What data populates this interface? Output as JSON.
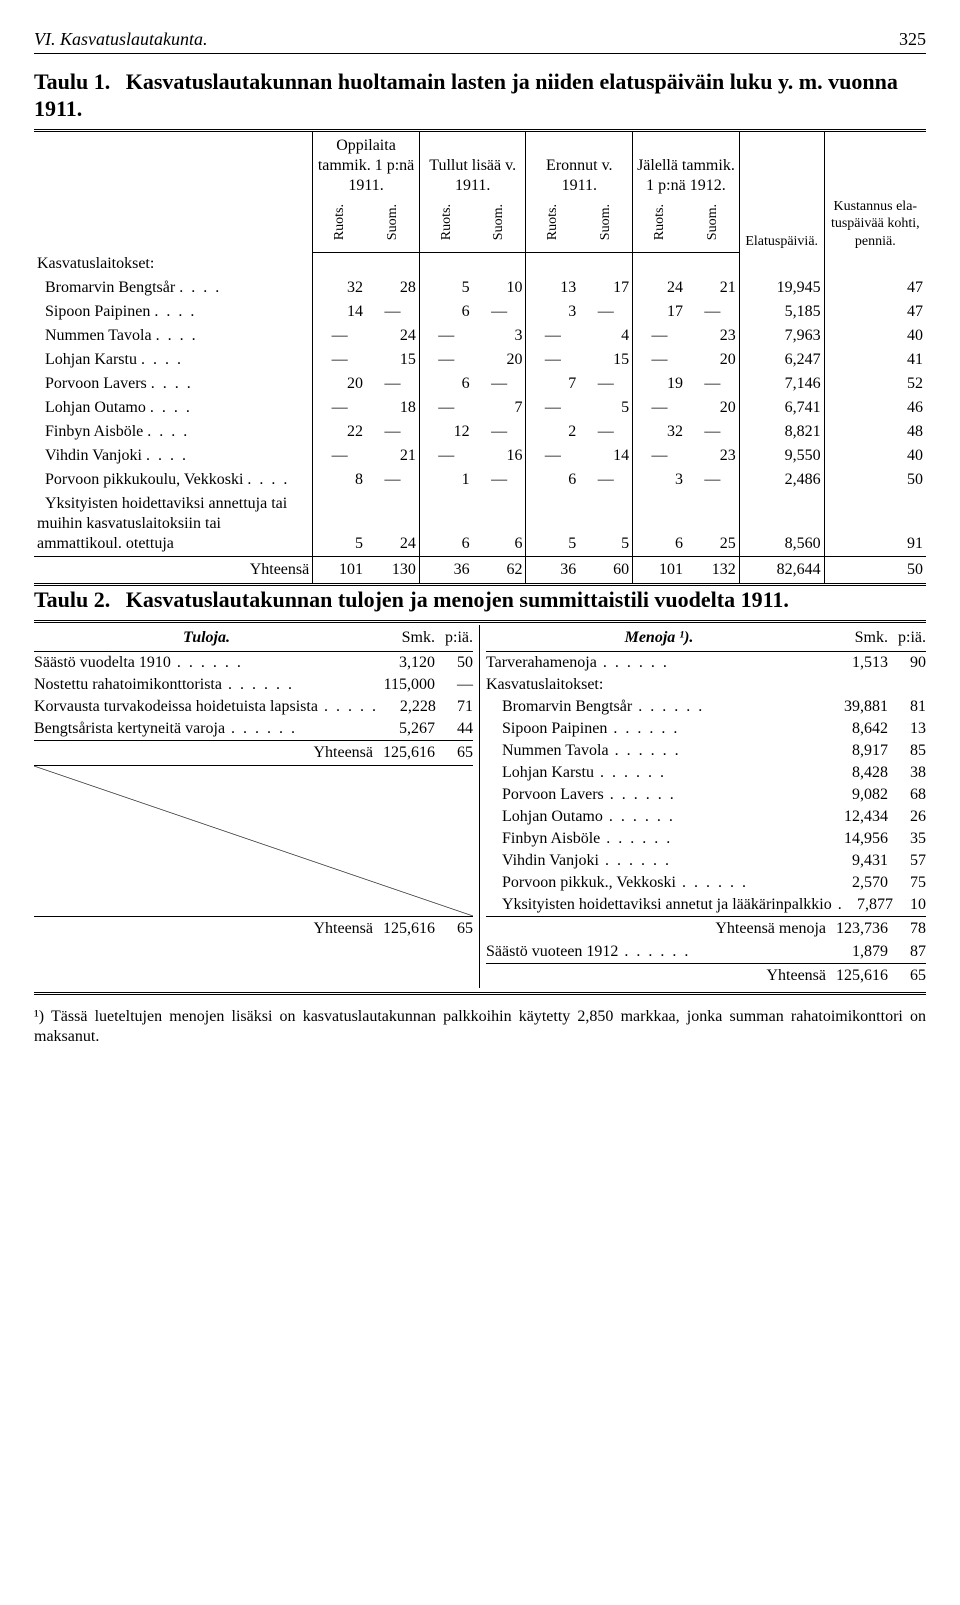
{
  "running_head": {
    "title": "VI. Kasvatuslautakunta.",
    "page": "325"
  },
  "table1": {
    "title_lead": "Taulu 1.",
    "title_rest": "Kasvatuslautakunnan huoltamain lasten ja niiden elatuspäiväin luku y. m. vuonna 1911.",
    "head": {
      "groups": [
        "Oppilaita tammik. 1 p:nä 1911.",
        "Tullut lisää v. 1911.",
        "Eronnut v. 1911.",
        "Jälellä tammik. 1 p:nä 1912."
      ],
      "sub": "Ruots.  Suom.",
      "elatus": "Elatus­päi­viä.",
      "kust": "Kustan­nus ela­tuspäi­vää koh­ti, pen­niä.",
      "ruots": "Ruots.",
      "suom": "Suom."
    },
    "section_label": "Kasvatuslaitokset:",
    "rows": [
      {
        "label": "Bromarvin Bengtsår",
        "c": [
          "32",
          "28",
          "5",
          "10",
          "13",
          "17",
          "24",
          "21",
          "19,945",
          "47"
        ]
      },
      {
        "label": "Sipoon Paipinen",
        "c": [
          "14",
          "—",
          "6",
          "—",
          "3",
          "—",
          "17",
          "—",
          "5,185",
          "47"
        ]
      },
      {
        "label": "Nummen Tavola",
        "c": [
          "—",
          "24",
          "—",
          "3",
          "—",
          "4",
          "—",
          "23",
          "7,963",
          "40"
        ]
      },
      {
        "label": "Lohjan Karstu",
        "c": [
          "—",
          "15",
          "—",
          "20",
          "—",
          "15",
          "—",
          "20",
          "6,247",
          "41"
        ]
      },
      {
        "label": "Porvoon Lavers",
        "c": [
          "20",
          "—",
          "6",
          "—",
          "7",
          "—",
          "19",
          "—",
          "7,146",
          "52"
        ]
      },
      {
        "label": "Lohjan Outamo",
        "c": [
          "—",
          "18",
          "—",
          "7",
          "—",
          "5",
          "—",
          "20",
          "6,741",
          "46"
        ]
      },
      {
        "label": "Finbyn Aisböle",
        "c": [
          "22",
          "—",
          "12",
          "—",
          "2",
          "—",
          "32",
          "—",
          "8,821",
          "48"
        ]
      },
      {
        "label": "Vihdin Vanjoki",
        "c": [
          "—",
          "21",
          "—",
          "16",
          "—",
          "14",
          "—",
          "23",
          "9,550",
          "40"
        ]
      },
      {
        "label": "Porvoon pikkukoulu, Vekkoski",
        "c": [
          "8",
          "—",
          "1",
          "—",
          "6",
          "—",
          "3",
          "—",
          "2,486",
          "50"
        ]
      },
      {
        "label": "Yksityisten hoidettaviksi annettuja tai muihin kasvatuslaitoksiin tai ammattikoul. otettuja",
        "c": [
          "5",
          "24",
          "6",
          "6",
          "5",
          "5",
          "6",
          "25",
          "8,560",
          "91"
        ]
      }
    ],
    "total_label": "Yhteensä",
    "total": [
      "101",
      "130",
      "36",
      "62",
      "36",
      "60",
      "101",
      "132",
      "82,644",
      "50"
    ]
  },
  "table2": {
    "title_lead": "Taulu 2.",
    "title_rest": "Kasvatuslautakunnan tulojen ja menojen summittaistili vuodelta 1911.",
    "smk": "Smk.",
    "pia": "p:iä.",
    "tuloja_label": "Tuloja.",
    "menoja_label": "Menoja ¹).",
    "tuloja": [
      {
        "desc": "Säästö vuodelta 1910",
        "smk": "3,120",
        "pia": "50"
      },
      {
        "desc": "Nostettu rahatoimikonttorista",
        "smk": "115,000",
        "pia": "—"
      },
      {
        "desc": "Korvausta turvakodeissa hoidetuista lapsista",
        "smk": "2,228",
        "pia": "71"
      },
      {
        "desc": "Bengtsårista kertyneitä varoja",
        "smk": "5,267",
        "pia": "44"
      }
    ],
    "tuloja_yht": {
      "desc": "Yhteensä",
      "smk": "125,616",
      "pia": "65"
    },
    "tuloja_grand": {
      "desc": "Yhteensä",
      "smk": "125,616",
      "pia": "65"
    },
    "menoja": [
      {
        "desc": "Tarverahamenoja",
        "smk": "1,513",
        "pia": "90"
      }
    ],
    "menoja_section": "Kasvatuslaitokset:",
    "menoja_items": [
      {
        "desc": "Bromarvin Bengtsår",
        "smk": "39,881",
        "pia": "81"
      },
      {
        "desc": "Sipoon Paipinen",
        "smk": "8,642",
        "pia": "13"
      },
      {
        "desc": "Nummen Tavola",
        "smk": "8,917",
        "pia": "85"
      },
      {
        "desc": "Lohjan Karstu",
        "smk": "8,428",
        "pia": "38"
      },
      {
        "desc": "Porvoon Lavers",
        "smk": "9,082",
        "pia": "68"
      },
      {
        "desc": "Lohjan Outamo",
        "smk": "12,434",
        "pia": "26"
      },
      {
        "desc": "Finbyn Aisböle",
        "smk": "14,956",
        "pia": "35"
      },
      {
        "desc": "Vihdin Vanjoki",
        "smk": "9,431",
        "pia": "57"
      },
      {
        "desc": "Porvoon pikkuk., Vekkoski",
        "smk": "2,570",
        "pia": "75"
      },
      {
        "desc": "Yksityisten hoidettaviksi annetut ja lääkärinpalkkio",
        "smk": "7,877",
        "pia": "10"
      }
    ],
    "menoja_yht": {
      "desc": "Yhteensä menoja",
      "smk": "123,736",
      "pia": "78"
    },
    "saasto": {
      "desc": "Säästö vuoteen 1912",
      "smk": "1,879",
      "pia": "87"
    },
    "menoja_grand": {
      "desc": "Yhteensä",
      "smk": "125,616",
      "pia": "65"
    }
  },
  "footnote": "¹) Tässä lueteltujen menojen lisäksi on kasvatuslautakunnan palkkoihin käytetty 2,850 markkaa, jonka summan rahatoimikonttori on maksanut."
}
